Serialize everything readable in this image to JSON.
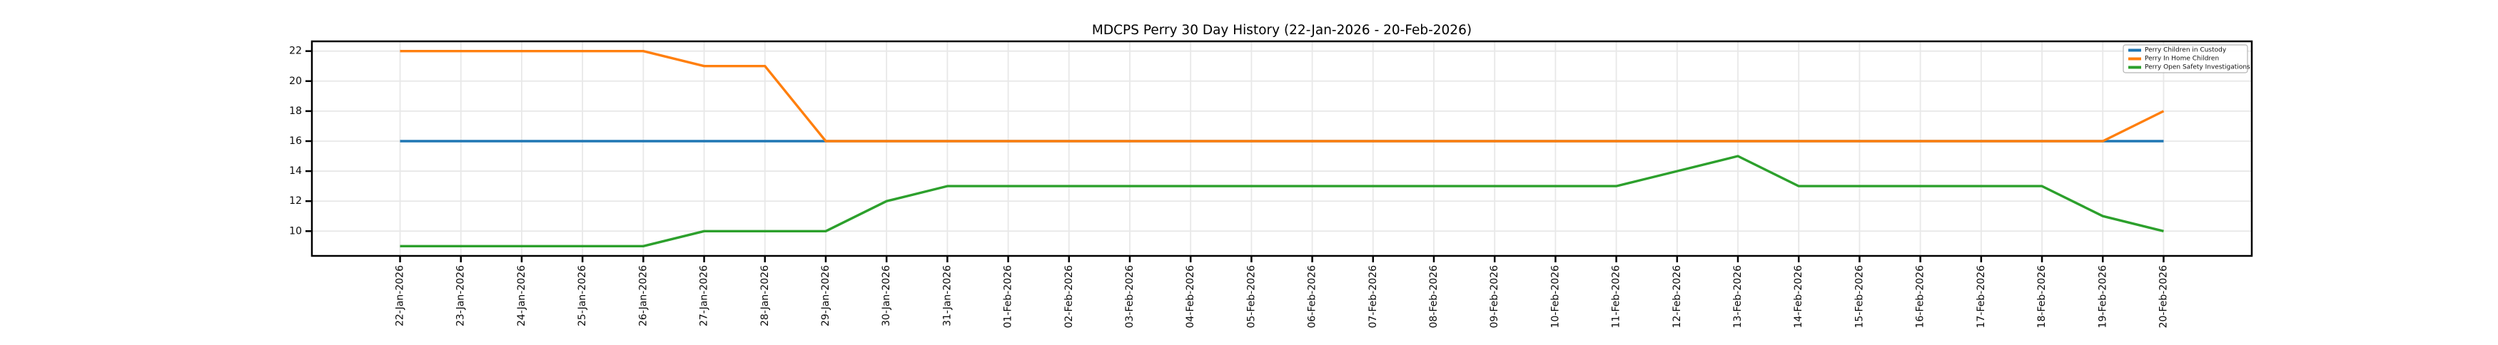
{
  "chart_data": {
    "type": "line",
    "title": "MDCPS Perry 30 Day History (22-Jan-2026 - 20-Feb-2026)",
    "xlabel": "",
    "ylabel": "",
    "categories": [
      "22-Jan-2026",
      "23-Jan-2026",
      "24-Jan-2026",
      "25-Jan-2026",
      "26-Jan-2026",
      "27-Jan-2026",
      "28-Jan-2026",
      "29-Jan-2026",
      "30-Jan-2026",
      "31-Jan-2026",
      "01-Feb-2026",
      "02-Feb-2026",
      "03-Feb-2026",
      "04-Feb-2026",
      "05-Feb-2026",
      "06-Feb-2026",
      "07-Feb-2026",
      "08-Feb-2026",
      "09-Feb-2026",
      "10-Feb-2026",
      "11-Feb-2026",
      "12-Feb-2026",
      "13-Feb-2026",
      "14-Feb-2026",
      "15-Feb-2026",
      "16-Feb-2026",
      "17-Feb-2026",
      "18-Feb-2026",
      "19-Feb-2026",
      "20-Feb-2026"
    ],
    "series": [
      {
        "name": "Perry Children in Custody",
        "color": "#1f77b4",
        "values": [
          16,
          16,
          16,
          16,
          16,
          16,
          16,
          16,
          16,
          16,
          16,
          16,
          16,
          16,
          16,
          16,
          16,
          16,
          16,
          16,
          16,
          16,
          16,
          16,
          16,
          16,
          16,
          16,
          16,
          16
        ]
      },
      {
        "name": "Perry In Home Children",
        "color": "#ff7f0e",
        "values": [
          22,
          22,
          22,
          22,
          22,
          21,
          21,
          16,
          16,
          16,
          16,
          16,
          16,
          16,
          16,
          16,
          16,
          16,
          16,
          16,
          16,
          16,
          16,
          16,
          16,
          16,
          16,
          16,
          16,
          18
        ]
      },
      {
        "name": "Perry Open Safety Investigations",
        "color": "#2ca02c",
        "values": [
          9,
          9,
          9,
          9,
          9,
          10,
          10,
          10,
          12,
          13,
          13,
          13,
          13,
          13,
          13,
          13,
          13,
          13,
          13,
          13,
          13,
          14,
          15,
          13,
          13,
          13,
          13,
          13,
          11,
          10
        ]
      }
    ],
    "yticks": [
      10,
      12,
      14,
      16,
      18,
      20,
      22
    ],
    "ylim": [
      8.35,
      22.65
    ],
    "grid": true,
    "legend_position": "upper right",
    "style": {
      "grid_color": "#e8e8e8",
      "spine_color": "#000000",
      "tick_color": "#000000",
      "background": "#ffffff"
    }
  }
}
